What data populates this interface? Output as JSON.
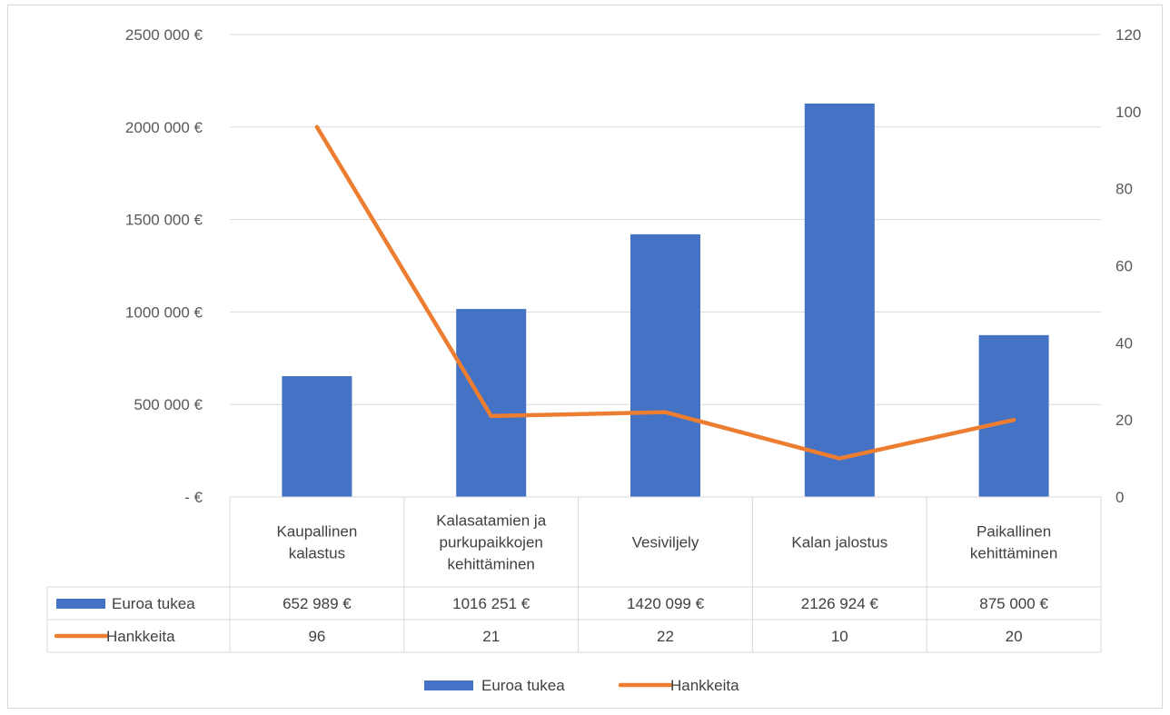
{
  "chart_data": {
    "type": "bar",
    "categories": [
      [
        "Kaupallinen",
        "kalastus"
      ],
      [
        "Kalasatamien ja",
        "purkupaikkojen",
        "kehittäminen"
      ],
      [
        "Vesiviljely"
      ],
      [
        "Kalan jalostus"
      ],
      [
        "Paikallinen",
        "kehittäminen"
      ]
    ],
    "series": [
      {
        "name": "Euroa tukea",
        "type": "bar",
        "axis": "left",
        "color": "#4472C4",
        "values": [
          652989,
          1016251,
          1420099,
          2126924,
          875000
        ],
        "labels": [
          "652 989 €",
          "1016 251 €",
          "1420 099 €",
          "2126 924 €",
          "875 000 €"
        ]
      },
      {
        "name": "Hankkeita",
        "type": "line",
        "axis": "right",
        "color": "#ED7D31",
        "values": [
          96,
          21,
          22,
          10,
          20
        ],
        "labels": [
          "96",
          "21",
          "22",
          "10",
          "20"
        ]
      }
    ],
    "y_left": {
      "ylim": [
        0,
        2500000
      ],
      "ticks": [
        0,
        500000,
        1000000,
        1500000,
        2000000,
        2500000
      ],
      "tick_labels": [
        "-   €",
        "500 000 €",
        "1000 000 €",
        "1500 000 €",
        "2000 000 €",
        "2500 000 €"
      ]
    },
    "y_right": {
      "ylim": [
        0,
        120
      ],
      "ticks": [
        0,
        20,
        40,
        60,
        80,
        100,
        120
      ],
      "tick_labels": [
        "0",
        "20",
        "40",
        "60",
        "80",
        "100",
        "120"
      ]
    },
    "grid": true,
    "data_table": true,
    "legend": "bottom"
  }
}
